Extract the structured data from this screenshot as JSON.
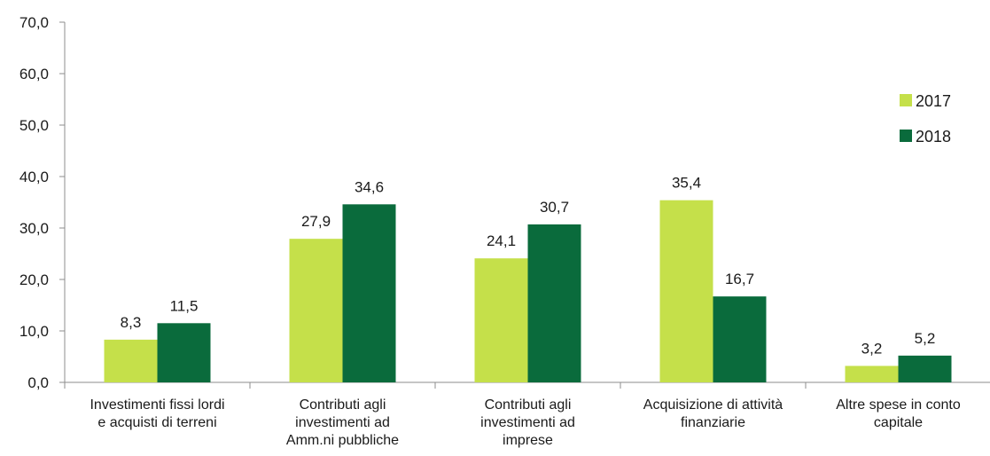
{
  "chart_data": {
    "type": "bar",
    "categories": [
      [
        "Investimenti fissi lordi",
        "e acquisti di terreni"
      ],
      [
        "Contributi agli",
        "investimenti ad",
        "Amm.ni pubbliche"
      ],
      [
        "Contributi agli",
        "investimenti ad",
        "imprese"
      ],
      [
        "Acquisizione di attività",
        "finanziarie"
      ],
      [
        "Altre spese in conto",
        "capitale"
      ]
    ],
    "series": [
      {
        "name": "2017",
        "color": "#c5e04a",
        "values": [
          8.3,
          27.9,
          24.1,
          35.4,
          3.2
        ],
        "labels": [
          "8,3",
          "27,9",
          "24,1",
          "35,4",
          "3,2"
        ]
      },
      {
        "name": "2018",
        "color": "#0a6b3c",
        "values": [
          11.5,
          34.6,
          30.7,
          16.7,
          5.2
        ],
        "labels": [
          "11,5",
          "34,6",
          "30,7",
          "16,7",
          "5,2"
        ]
      }
    ],
    "ylim": [
      0,
      70
    ],
    "yticks": [
      "0,0",
      "10,0",
      "20,0",
      "30,0",
      "40,0",
      "50,0",
      "60,0",
      "70,0"
    ],
    "title": "",
    "xlabel": "",
    "ylabel": "",
    "legend_position": "right",
    "grid": false
  }
}
